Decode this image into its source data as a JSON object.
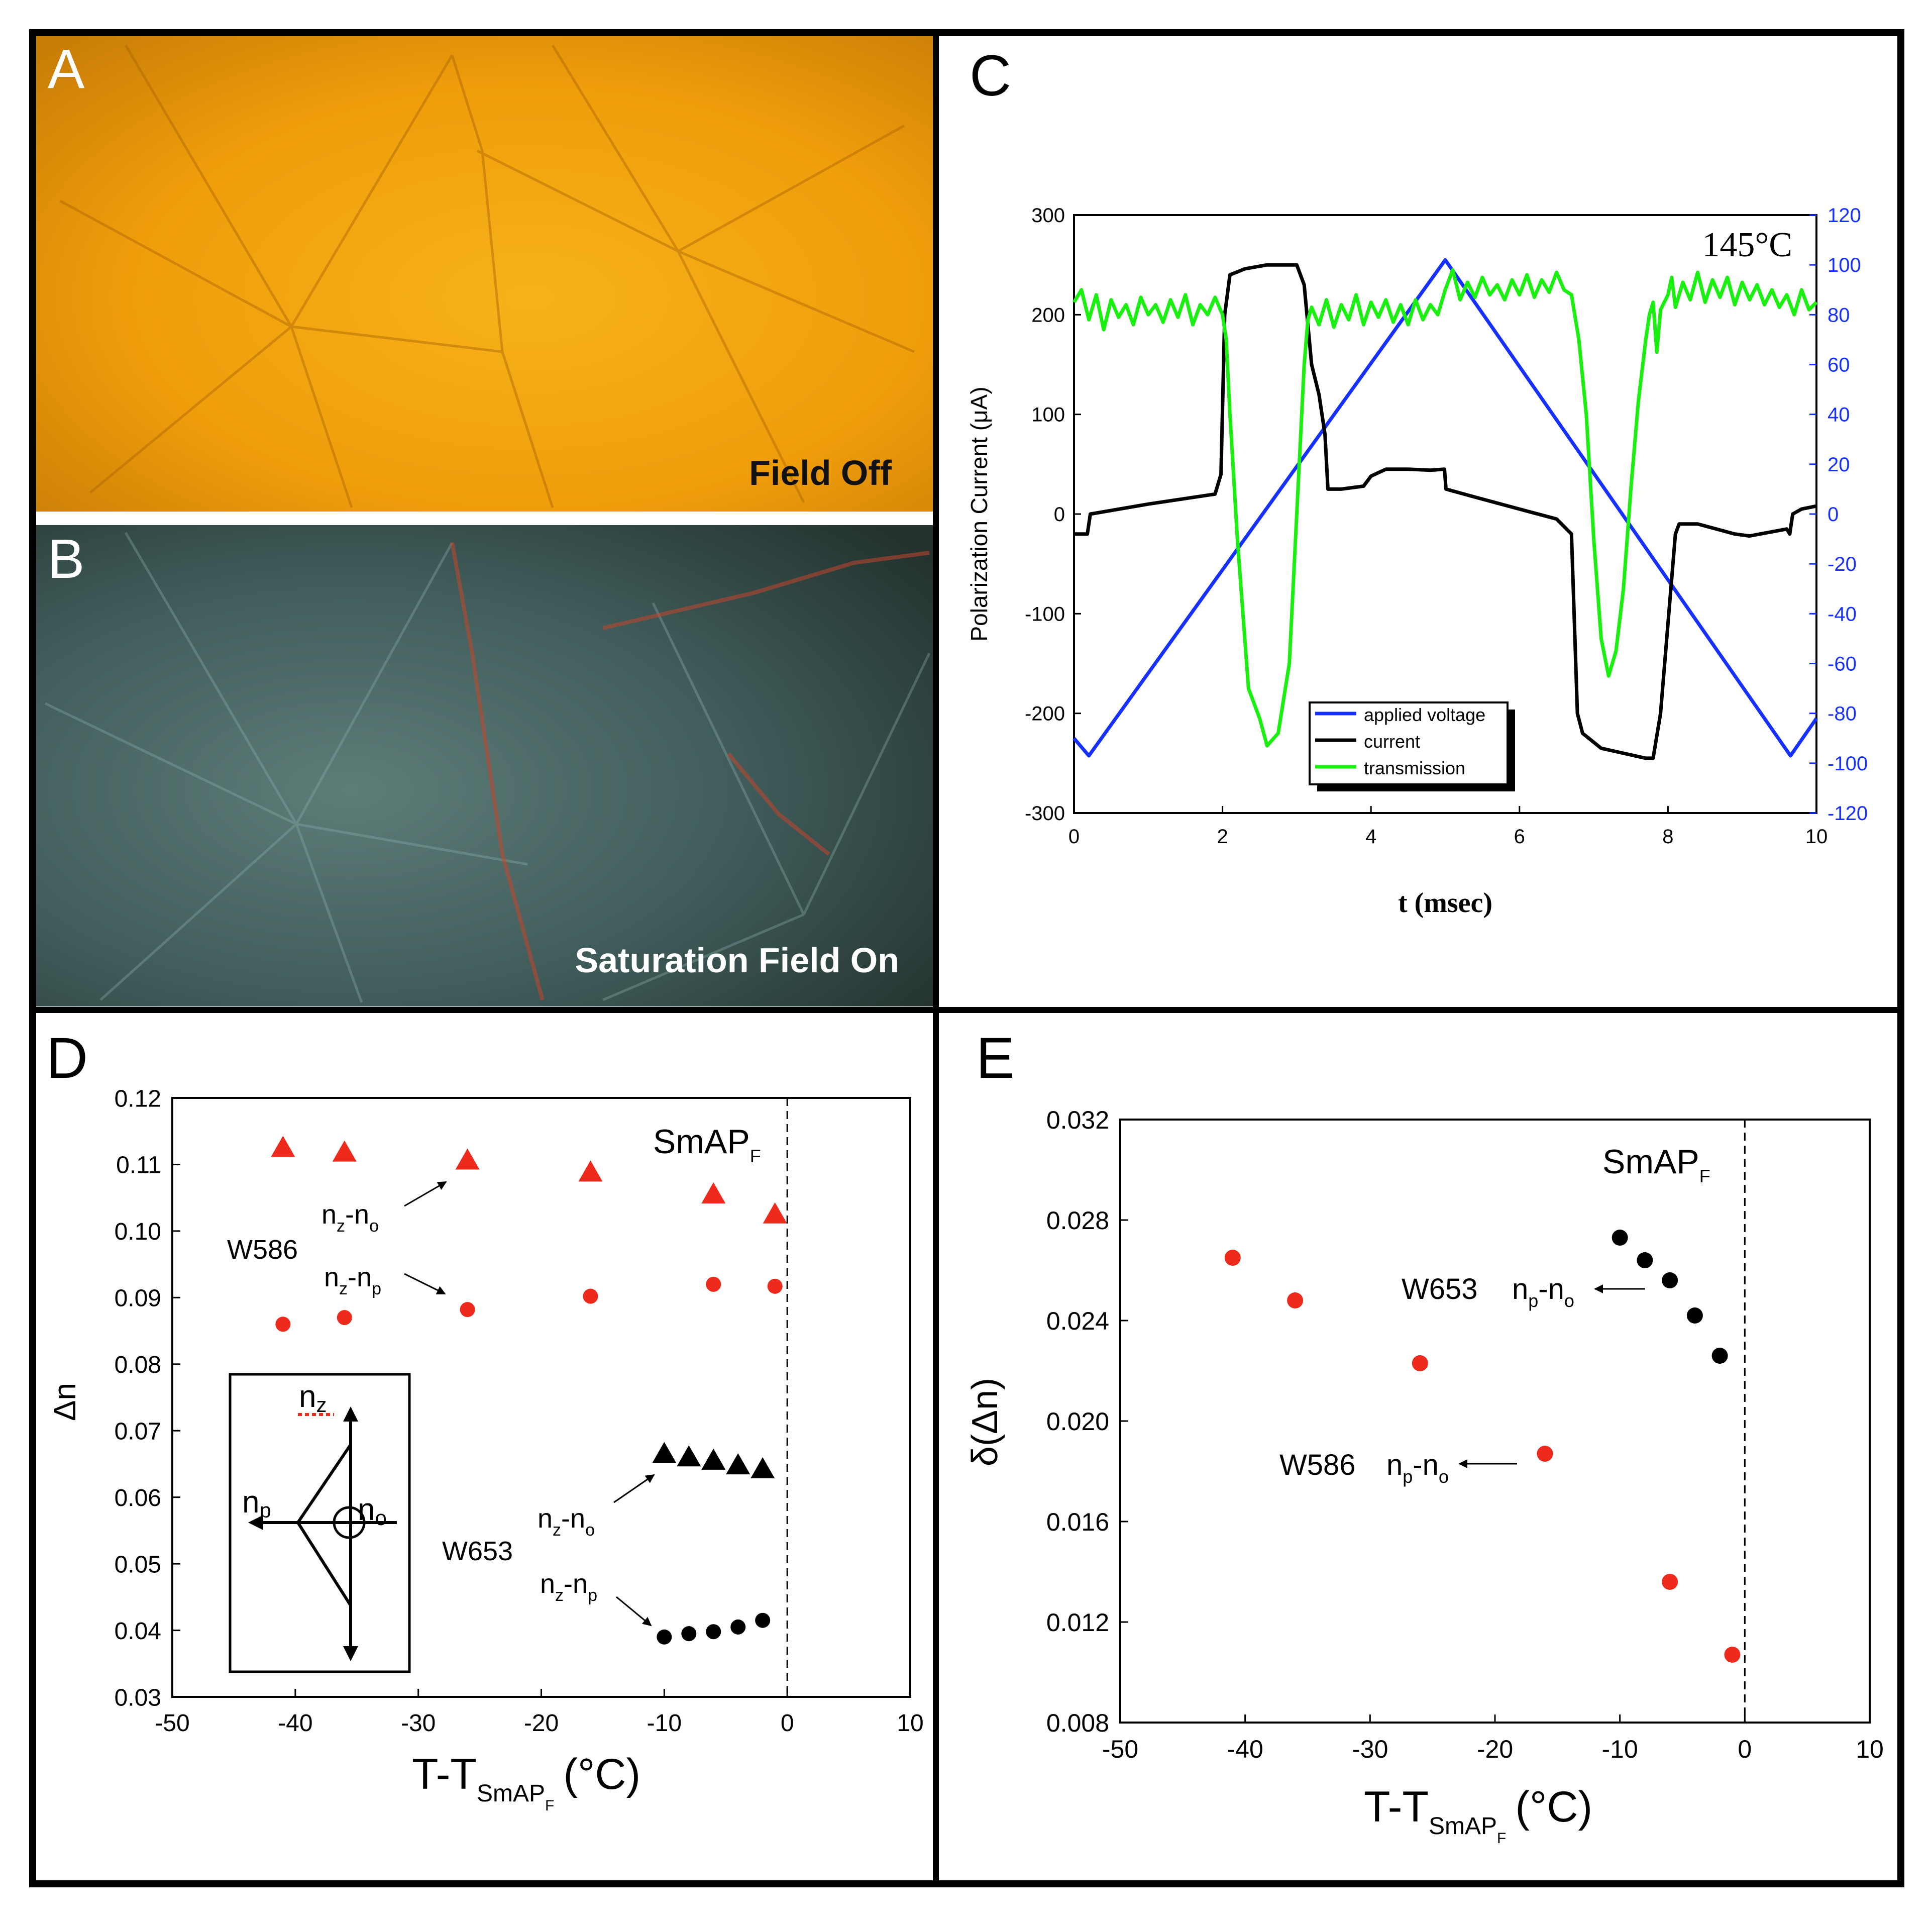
{
  "colors": {
    "red": "#ee2a1c",
    "black": "#000000",
    "blue": "#1530ff",
    "green": "#19f00f",
    "micrograph_orange": "#f2a20c",
    "micrograph_teal": "#3f5c5a"
  },
  "panels": {
    "A": {
      "letter": "A",
      "caption": "Field Off"
    },
    "B": {
      "letter": "B",
      "caption": "Saturation Field On"
    },
    "C": {
      "letter": "C",
      "temperature_label": "145°C"
    },
    "D": {
      "letter": "D"
    },
    "E": {
      "letter": "E"
    }
  },
  "chart_data": [
    {
      "id": "C",
      "type": "line",
      "title": "",
      "xlabel": "t (msec)",
      "ylabel": "Polarization Current (μA)",
      "annotation": "145°C",
      "xlim": [
        0,
        10
      ],
      "ylim": [
        -300,
        300
      ],
      "y2lim": [
        -120,
        120
      ],
      "x_ticks": [
        "0",
        "2",
        "4",
        "6",
        "8",
        "10"
      ],
      "y_ticks": [
        "-300",
        "-200",
        "-100",
        "0",
        "100",
        "200",
        "300"
      ],
      "y2_ticks": [
        "-120",
        "-100",
        "-80",
        "-60",
        "-40",
        "-20",
        "0",
        "20",
        "40",
        "60",
        "80",
        "100",
        "120"
      ],
      "legend": [
        "applied voltage",
        "current",
        "transmission"
      ],
      "series": [
        {
          "name": "applied voltage",
          "axis": "right",
          "color": "#1530ff",
          "x": [
            0,
            0.2,
            5.0,
            9.65,
            10
          ],
          "y": [
            -90,
            -97,
            102,
            -97,
            -82
          ]
        },
        {
          "name": "current",
          "axis": "left",
          "color": "#000000",
          "x": [
            0,
            0.18,
            0.22,
            1.0,
            1.9,
            1.98,
            2.03,
            2.1,
            2.3,
            2.6,
            3.0,
            3.1,
            3.2,
            3.3,
            3.38,
            3.42,
            3.6,
            3.9,
            4.0,
            4.2,
            4.5,
            4.8,
            4.99,
            5.01,
            5.5,
            6.0,
            6.5,
            6.7,
            6.78,
            6.85,
            7.1,
            7.4,
            7.7,
            7.8,
            7.9,
            8.0,
            8.1,
            8.15,
            8.4,
            8.9,
            9.1,
            9.6,
            9.64,
            9.68,
            9.8,
            10
          ],
          "y": [
            -20,
            -20,
            0,
            10,
            20,
            40,
            200,
            240,
            246,
            250,
            250,
            230,
            150,
            120,
            80,
            25,
            25,
            28,
            38,
            45,
            45,
            44,
            45,
            25,
            15,
            5,
            -5,
            -20,
            -200,
            -220,
            -235,
            -240,
            -245,
            -245,
            -200,
            -110,
            -20,
            -10,
            -10,
            -20,
            -22,
            -15,
            -20,
            0,
            5,
            8
          ]
        },
        {
          "name": "transmission",
          "axis": "right",
          "color": "#19f00f",
          "x": [
            0,
            0.1,
            0.2,
            0.3,
            0.4,
            0.5,
            0.6,
            0.7,
            0.8,
            0.9,
            1.0,
            1.1,
            1.2,
            1.3,
            1.4,
            1.5,
            1.6,
            1.7,
            1.8,
            1.9,
            2.0,
            2.05,
            2.1,
            2.2,
            2.35,
            2.5,
            2.6,
            2.75,
            2.9,
            3.0,
            3.1,
            3.15,
            3.2,
            3.3,
            3.4,
            3.5,
            3.6,
            3.7,
            3.8,
            3.9,
            4.0,
            4.1,
            4.2,
            4.3,
            4.4,
            4.5,
            4.6,
            4.7,
            4.8,
            4.9,
            5.0,
            5.1,
            5.2,
            5.3,
            5.4,
            5.5,
            5.6,
            5.7,
            5.8,
            5.9,
            6.0,
            6.1,
            6.2,
            6.3,
            6.4,
            6.5,
            6.6,
            6.7,
            6.8,
            6.9,
            7.0,
            7.1,
            7.2,
            7.3,
            7.4,
            7.5,
            7.6,
            7.7,
            7.75,
            7.8,
            7.85,
            7.9,
            8.0,
            8.05,
            8.1,
            8.2,
            8.3,
            8.4,
            8.5,
            8.6,
            8.7,
            8.8,
            8.9,
            9.0,
            9.1,
            9.2,
            9.3,
            9.4,
            9.5,
            9.6,
            9.7,
            9.8,
            9.9,
            10
          ],
          "y": [
            85,
            90,
            78,
            88,
            74,
            86,
            79,
            84,
            76,
            87,
            80,
            84,
            77,
            86,
            79,
            88,
            76,
            84,
            80,
            87,
            80,
            70,
            40,
            -10,
            -70,
            -82,
            -93,
            -88,
            -60,
            0,
            60,
            78,
            83,
            76,
            86,
            75,
            84,
            78,
            88,
            76,
            85,
            79,
            86,
            77,
            84,
            76,
            86,
            78,
            84,
            80,
            90,
            98,
            86,
            93,
            87,
            95,
            88,
            92,
            86,
            94,
            88,
            96,
            87,
            94,
            89,
            97,
            90,
            88,
            70,
            40,
            -10,
            -50,
            -65,
            -55,
            -30,
            10,
            45,
            70,
            80,
            85,
            65,
            82,
            88,
            95,
            83,
            93,
            86,
            97,
            85,
            94,
            87,
            95,
            84,
            93,
            86,
            92,
            84,
            90,
            83,
            88,
            80,
            90,
            82,
            85
          ]
        }
      ]
    },
    {
      "id": "D",
      "type": "scatter",
      "title": "",
      "xlabel": "T-T",
      "xlabel_sub": "SmAP",
      "xlabel_subsub": "F",
      "xlabel_unit": "(°C)",
      "ylabel": "Δn",
      "xlim": [
        -50,
        10
      ],
      "ylim": [
        0.03,
        0.12
      ],
      "x_ticks": [
        "-50",
        "-40",
        "-30",
        "-20",
        "-10",
        "0",
        "10"
      ],
      "y_ticks": [
        "0.03",
        "0.04",
        "0.05",
        "0.06",
        "0.07",
        "0.08",
        "0.09",
        "0.10",
        "0.11",
        "0.12"
      ],
      "phase_label": "SmAP",
      "phase_sub": "F",
      "sample_labels": {
        "w586": "W586",
        "w653": "W653"
      },
      "series_labels": {
        "nz_no": {
          "main": "n",
          "sub1": "z",
          "dash": "-n",
          "sub2": "o"
        },
        "nz_np": {
          "main": "n",
          "sub1": "z",
          "dash": "-n",
          "sub2": "p"
        }
      },
      "inset_labels": {
        "nz": "n",
        "nz_sub": "z",
        "np": "n",
        "np_sub": "p",
        "no": "n",
        "no_sub": "o"
      },
      "series": [
        {
          "name": "W586 nz-no",
          "marker": "triangle",
          "color": "#ee2a1c",
          "x": [
            -41,
            -36,
            -26,
            -16,
            -6,
            -1
          ],
          "y": [
            0.1125,
            0.1118,
            0.1106,
            0.1088,
            0.1055,
            0.1025
          ]
        },
        {
          "name": "W586 nz-np",
          "marker": "circle",
          "color": "#ee2a1c",
          "x": [
            -41,
            -36,
            -26,
            -16,
            -6,
            -1
          ],
          "y": [
            0.086,
            0.087,
            0.0882,
            0.0902,
            0.092,
            0.0917
          ]
        },
        {
          "name": "W653 nz-no",
          "marker": "triangle",
          "color": "#000000",
          "x": [
            -10,
            -8,
            -6,
            -4,
            -2
          ],
          "y": [
            0.0665,
            0.066,
            0.0655,
            0.0648,
            0.0642
          ]
        },
        {
          "name": "W653 nz-np",
          "marker": "circle",
          "color": "#000000",
          "x": [
            -10,
            -8,
            -6,
            -4,
            -2
          ],
          "y": [
            0.039,
            0.0395,
            0.0398,
            0.0405,
            0.0415
          ]
        }
      ]
    },
    {
      "id": "E",
      "type": "scatter",
      "title": "",
      "xlabel": "T-T",
      "xlabel_sub": "SmAP",
      "xlabel_subsub": "F",
      "xlabel_unit": "(°C)",
      "ylabel": "δ(Δn)",
      "xlim": [
        -50,
        10
      ],
      "ylim": [
        0.008,
        0.032
      ],
      "x_ticks": [
        "-50",
        "-40",
        "-30",
        "-20",
        "-10",
        "0",
        "10"
      ],
      "y_ticks": [
        "0.008",
        "0.012",
        "0.016",
        "0.020",
        "0.024",
        "0.028",
        "0.032"
      ],
      "phase_label": "SmAP",
      "phase_sub": "F",
      "sample_labels": {
        "w653": "W653",
        "w586": "W586"
      },
      "series_labels": {
        "np_no": {
          "main": "n",
          "sub1": "p",
          "dash": "-n",
          "sub2": "o"
        }
      },
      "series": [
        {
          "name": "W653 np-no",
          "marker": "circle",
          "color": "#000000",
          "x": [
            -10,
            -8,
            -6,
            -4,
            -2
          ],
          "y": [
            0.0273,
            0.0264,
            0.0256,
            0.0242,
            0.0226
          ]
        },
        {
          "name": "W586 np-no",
          "marker": "circle",
          "color": "#ee2a1c",
          "x": [
            -41,
            -36,
            -26,
            -16,
            -6,
            -1
          ],
          "y": [
            0.0265,
            0.0248,
            0.0223,
            0.0187,
            0.0136,
            0.0107
          ]
        }
      ]
    }
  ]
}
